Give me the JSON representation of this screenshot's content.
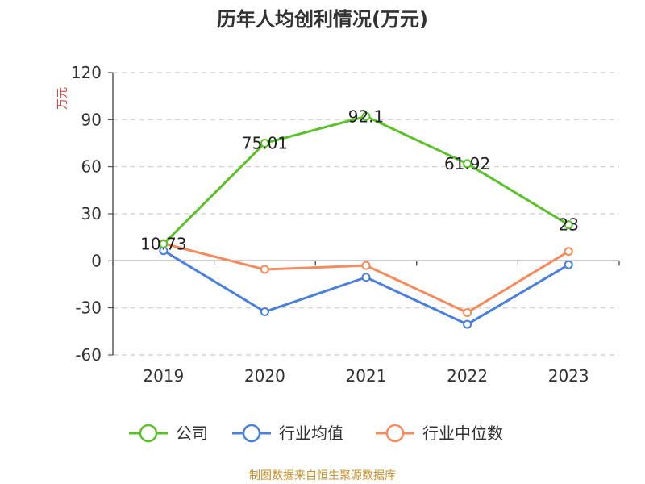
{
  "chart_data": {
    "type": "line",
    "title": "历年人均创利情况(万元)",
    "ylabel": "万元",
    "categories": [
      "2019",
      "2020",
      "2021",
      "2022",
      "2023"
    ],
    "ylim": [
      -60,
      120
    ],
    "yticks": [
      120,
      90,
      60,
      30,
      0,
      -30,
      -60
    ],
    "grid": true,
    "legend_position": "bottom",
    "series": [
      {
        "name": "公司",
        "color": "#5cc02a",
        "values": [
          10.73,
          75.01,
          92.1,
          61.92,
          23
        ],
        "labels": [
          "10.73",
          "75.01",
          "92.1",
          "61.92",
          "23"
        ]
      },
      {
        "name": "行业均值",
        "color": "#4a7fdb",
        "values": [
          6.5,
          -32.5,
          -10.5,
          -40.5,
          -2.5
        ]
      },
      {
        "name": "行业中位数",
        "color": "#f58b5c",
        "values": [
          11,
          -5.5,
          -3,
          -33,
          6
        ]
      }
    ]
  },
  "source": "制图数据来自恒生聚源数据库"
}
